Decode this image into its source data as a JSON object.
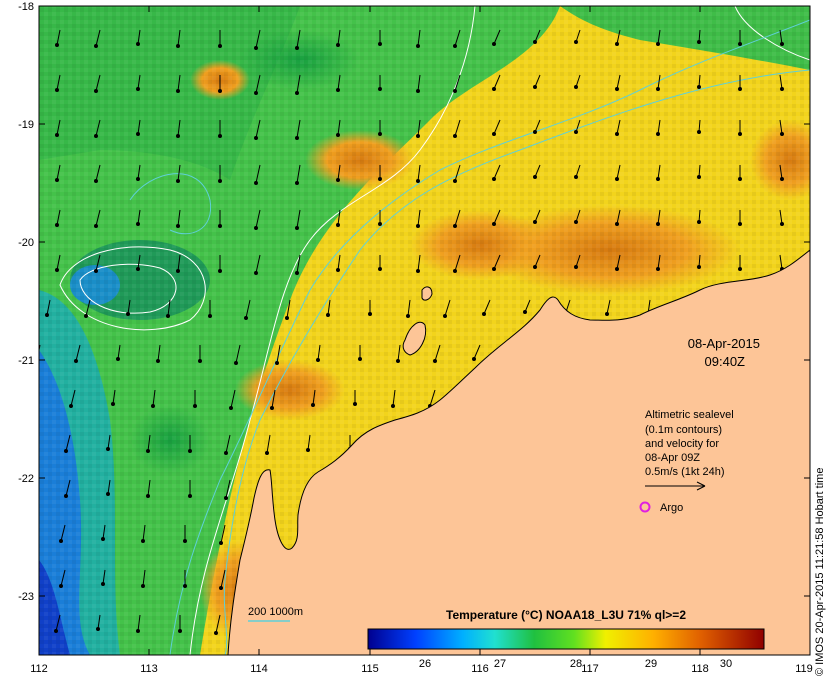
{
  "map": {
    "date": "08-Apr-2015",
    "time": "09:40Z",
    "credit": "© IMOS 20-Apr-2015 11:21:58 Hobart time",
    "lat_labels": [
      "-18",
      "-19",
      "-20",
      "-21",
      "-22",
      "-23"
    ],
    "lon_labels": [
      "112",
      "113",
      "114",
      "115",
      "116",
      "117",
      "118",
      "119"
    ]
  },
  "legend": {
    "line1": "Altimetric sealevel",
    "line2": "(0.1m contours)",
    "line3": "and velocity for",
    "line4": "08-Apr 09Z",
    "line5": "0.5m/s (1kt 24h)",
    "argo_label": "Argo",
    "bathy_label": "200  1000m"
  },
  "colorbar": {
    "title": "Temperature (°C) NOAA18_L3U 71% ql>=2",
    "ticks": [
      "26",
      "27",
      "28",
      "29",
      "30"
    ]
  },
  "colors": {
    "land": "#fdc597",
    "argo": "#e020e0",
    "contour": "#ffffff",
    "bathy": "#5fd0d8"
  }
}
